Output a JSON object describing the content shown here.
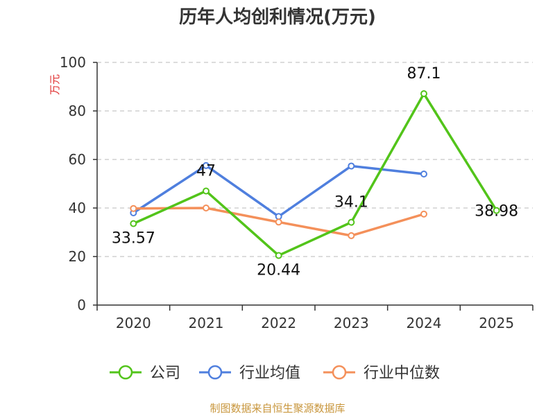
{
  "chart_data": {
    "type": "line",
    "title": "历年人均创利情况(万元)",
    "ylabel": "万元",
    "categories": [
      "2020",
      "2021",
      "2022",
      "2023",
      "2024",
      "2025"
    ],
    "ylim": [
      0,
      100
    ],
    "yticks": [
      0,
      20,
      40,
      60,
      80,
      100
    ],
    "grid": true,
    "legend_position": "bottom",
    "series": [
      {
        "name": "公司",
        "color": "#52c41a",
        "values": [
          33.57,
          47,
          20.44,
          34.1,
          87.1,
          38.98
        ],
        "labels": [
          "33.57",
          "47",
          "20.44",
          "34.1",
          "87.1",
          "38.98"
        ]
      },
      {
        "name": "行业均值",
        "color": "#4f7fde",
        "values": [
          38,
          57.5,
          36.5,
          57.3,
          54,
          null
        ]
      },
      {
        "name": "行业中位数",
        "color": "#f4905a",
        "values": [
          39.8,
          40,
          34.2,
          28.6,
          37.5,
          null
        ]
      }
    ]
  },
  "footer": {
    "source": "制图数据来自恒生聚源数据库"
  }
}
